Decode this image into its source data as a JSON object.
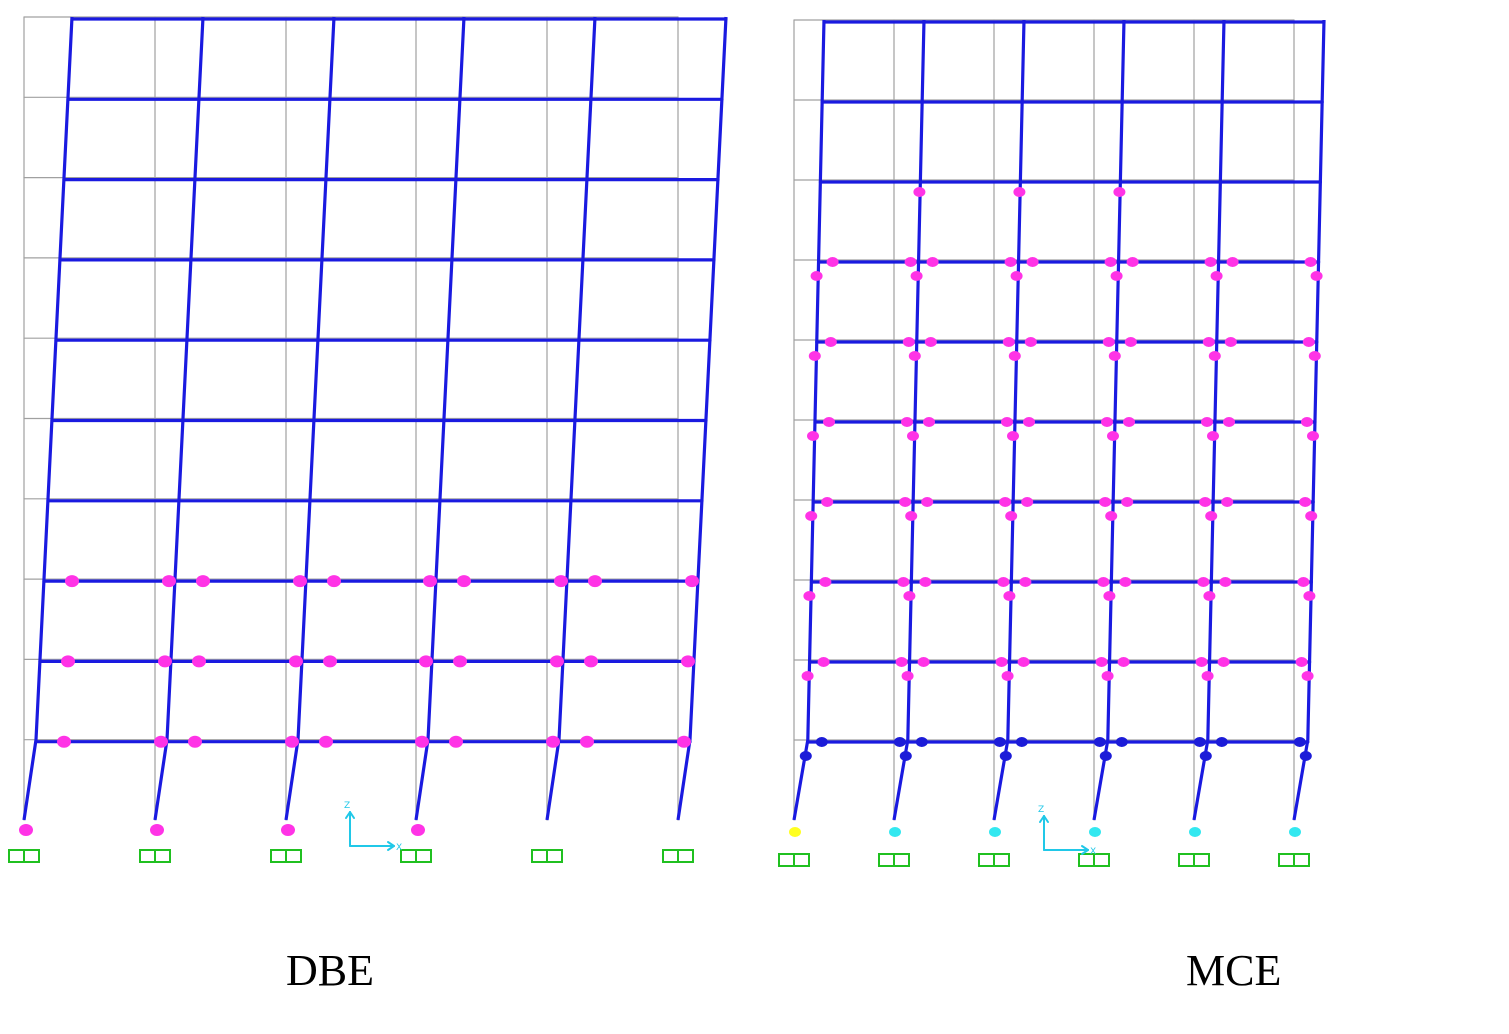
{
  "captions": {
    "left": "DBE",
    "right": "MCE"
  },
  "colors": {
    "undeformed": "#a0a0a0",
    "deformed": "#1a1ae0",
    "hinge_io": "#ff33e6",
    "hinge_ls": "#1c1cd8",
    "hinge_cp": "#33e8f0",
    "hinge_collapse": "#ffff20",
    "support": "#20c020",
    "axes": "#20c8e8"
  },
  "axes_labels": {
    "vertical": "Z",
    "horizontal": "X"
  },
  "frames": [
    {
      "name": "DBE",
      "stories": 10,
      "bays": 5,
      "beam_hinge_stories": [
        1,
        2,
        3
      ],
      "base_hinge_columns": [
        0,
        1,
        2,
        3
      ]
    },
    {
      "name": "MCE",
      "stories": 10,
      "bays": 5
    }
  ]
}
